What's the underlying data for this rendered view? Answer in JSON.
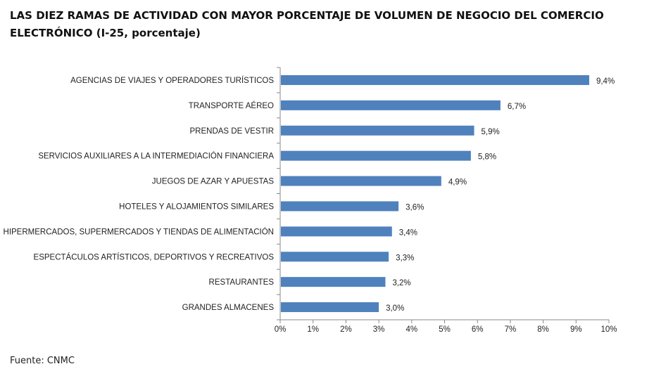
{
  "chart_data": {
    "type": "bar",
    "orientation": "horizontal",
    "title": "LAS DIEZ RAMAS DE ACTIVIDAD CON MAYOR PORCENTAJE DE VOLUMEN DE NEGOCIO DEL COMERCIO ELECTRÓNICO (I-25, porcentaje)",
    "categories": [
      "AGENCIAS DE VIAJES Y OPERADORES TURÍSTICOS",
      "TRANSPORTE AÉREO",
      "PRENDAS DE VESTIR",
      "SERVICIOS AUXILIARES A LA INTERMEDIACIÓN FINANCIERA",
      "JUEGOS DE AZAR Y APUESTAS",
      "HOTELES  Y ALOJAMIENTOS SIMILARES",
      "HIPERMERCADOS, SUPERMERCADOS Y TIENDAS DE ALIMENTACIÓN",
      "ESPECTÁCULOS ARTÍSTICOS, DEPORTIVOS Y RECREATIVOS",
      "RESTAURANTES",
      "GRANDES ALMACENES"
    ],
    "values": [
      9.4,
      6.7,
      5.9,
      5.8,
      4.9,
      3.6,
      3.4,
      3.3,
      3.2,
      3.0
    ],
    "value_labels": [
      "9,4%",
      "6,7%",
      "5,9%",
      "5,8%",
      "4,9%",
      "3,6%",
      "3,4%",
      "3,3%",
      "3,2%",
      "3,0%"
    ],
    "xlim": [
      0,
      10
    ],
    "xticks": [
      "0%",
      "1%",
      "2%",
      "3%",
      "4%",
      "5%",
      "6%",
      "7%",
      "8%",
      "9%",
      "10%"
    ],
    "xlabel": "",
    "ylabel": "",
    "grid": false,
    "bar_color": "#4f81bd"
  },
  "source": "Fuente: CNMC"
}
